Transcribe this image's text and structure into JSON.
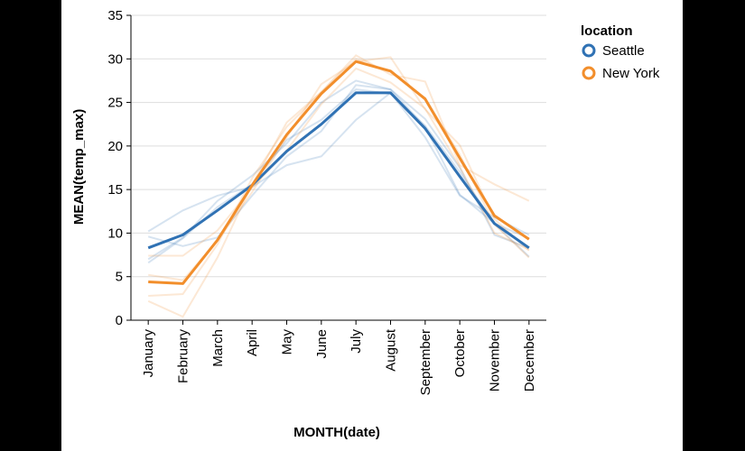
{
  "chart_data": {
    "type": "line",
    "title": "",
    "xlabel": "MONTH(date)",
    "ylabel": "MEAN(temp_max)",
    "ylim": [
      0,
      35
    ],
    "yticks": [
      0,
      5,
      10,
      15,
      20,
      25,
      30,
      35
    ],
    "grid": true,
    "legend_position": "top-right",
    "categories": [
      "January",
      "February",
      "March",
      "April",
      "May",
      "June",
      "July",
      "August",
      "September",
      "October",
      "November",
      "December"
    ],
    "legend": {
      "title": "location"
    },
    "series": [
      {
        "name": "Seattle",
        "color": "#3072b4",
        "values": [
          8.3,
          9.8,
          12.6,
          15.5,
          19.4,
          22.5,
          26.1,
          26.1,
          22.0,
          16.5,
          11.1,
          8.3
        ]
      },
      {
        "name": "New York",
        "color": "#f28e2b",
        "values": [
          4.4,
          4.2,
          9.2,
          15.5,
          21.3,
          26.0,
          29.7,
          28.6,
          25.4,
          18.6,
          12.0,
          9.3
        ]
      }
    ],
    "faint_series": [
      {
        "color": "#3072b4",
        "values": [
          10.2,
          12.6,
          14.3,
          15.3,
          17.8,
          18.8,
          23.0,
          26.1,
          21.0,
          14.3,
          11.8,
          9.8
        ]
      },
      {
        "color": "#3072b4",
        "values": [
          9.6,
          8.5,
          9.5,
          14.3,
          18.8,
          21.7,
          27.0,
          26.5,
          23.1,
          17.5,
          9.8,
          8.3
        ]
      },
      {
        "color": "#3072b4",
        "values": [
          6.6,
          9.4,
          13.0,
          15.6,
          20.7,
          23.0,
          26.5,
          26.0,
          22.3,
          17.0,
          11.1,
          7.3
        ]
      },
      {
        "color": "#3072b4",
        "values": [
          7.0,
          9.5,
          13.7,
          16.6,
          20.3,
          25.0,
          27.5,
          26.5,
          22.2,
          14.4,
          11.1,
          9.4
        ]
      },
      {
        "color": "#f28e2b",
        "values": [
          2.2,
          0.4,
          7.2,
          15.6,
          22.7,
          26.2,
          30.4,
          28.2,
          27.4,
          17.8,
          15.6,
          13.7
        ]
      },
      {
        "color": "#f28e2b",
        "values": [
          5.2,
          4.6,
          9.1,
          14.7,
          21.0,
          27.1,
          29.7,
          30.2,
          24.2,
          20.1,
          11.6,
          8.0
        ]
      },
      {
        "color": "#f28e2b",
        "values": [
          2.8,
          3.0,
          8.7,
          16.3,
          22.2,
          26.2,
          30.0,
          28.5,
          25.5,
          19.0,
          11.0,
          7.2
        ]
      },
      {
        "color": "#f28e2b",
        "values": [
          7.4,
          7.4,
          10.3,
          15.2,
          19.5,
          24.8,
          28.9,
          27.3,
          24.3,
          17.6,
          10.0,
          8.1
        ]
      }
    ]
  }
}
